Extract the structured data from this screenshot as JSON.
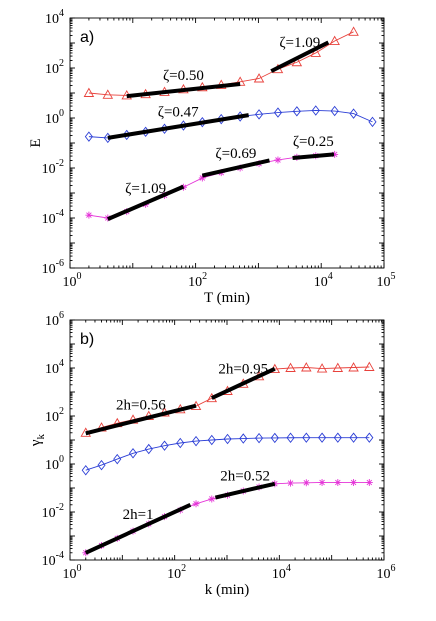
{
  "chart_data": [
    {
      "type": "line",
      "panel_label": "a)",
      "xlabel": "T (min)",
      "ylabel": "E",
      "x_scale": "log",
      "y_scale": "log",
      "xlim": [
        1,
        100000
      ],
      "ylim": [
        1e-06,
        10000
      ],
      "x_ticks": [
        {
          "value": 1,
          "base": "10",
          "exp": "0"
        },
        {
          "value": 100,
          "base": "10",
          "exp": "2"
        },
        {
          "value": 10000,
          "base": "10",
          "exp": "4"
        },
        {
          "value": 100000,
          "base": "10",
          "exp": "5"
        }
      ],
      "y_ticks": [
        {
          "value": 1e-06,
          "base": "10",
          "exp": "-6"
        },
        {
          "value": 0.0001,
          "base": "10",
          "exp": "-4"
        },
        {
          "value": 0.01,
          "base": "10",
          "exp": "-2"
        },
        {
          "value": 1,
          "base": "10",
          "exp": "0"
        },
        {
          "value": 100,
          "base": "10",
          "exp": "2"
        },
        {
          "value": 10000,
          "base": "10",
          "exp": "4"
        }
      ],
      "series": [
        {
          "color": "#e8423c",
          "marker": "triangle",
          "x": [
            2,
            4,
            8,
            16,
            32,
            64,
            128,
            256,
            512,
            1024,
            2048,
            4096,
            8192,
            16384,
            32768
          ],
          "y": [
            10,
            8.5,
            8,
            9,
            11,
            14,
            17,
            21,
            28,
            38,
            90,
            170,
            400,
            1200,
            2800
          ]
        },
        {
          "color": "#2c3fd6",
          "marker": "diamond",
          "x": [
            2,
            4,
            8,
            16,
            32,
            64,
            128,
            256,
            512,
            1024,
            2048,
            4096,
            8192,
            16384,
            32768,
            65536
          ],
          "y": [
            0.18,
            0.16,
            0.21,
            0.28,
            0.37,
            0.5,
            0.68,
            0.9,
            1.15,
            1.4,
            1.65,
            1.85,
            2.0,
            1.9,
            1.5,
            0.7
          ]
        },
        {
          "color": "#e535d8",
          "marker": "star",
          "x": [
            2,
            4,
            8,
            16,
            32,
            64,
            128,
            256,
            512,
            1024,
            2048,
            4096,
            8192,
            16384
          ],
          "y": [
            0.00013,
            0.0001,
            0.00018,
            0.00035,
            0.0008,
            0.0017,
            0.004,
            0.0065,
            0.01,
            0.015,
            0.021,
            0.027,
            0.031,
            0.035
          ]
        }
      ],
      "fits": [
        {
          "label": "ζ=0.50",
          "x": [
            8,
            512
          ],
          "y": [
            7.5,
            23
          ]
        },
        {
          "label": "ζ=1.09",
          "x": [
            1600,
            13000
          ],
          "y": [
            75,
            1050
          ]
        },
        {
          "label": "ζ=0.47",
          "x": [
            4,
            700
          ],
          "y": [
            0.16,
            1.3
          ]
        },
        {
          "label": "ζ=1.09",
          "x": [
            4,
            64
          ],
          "y": [
            9e-05,
            0.0018
          ]
        },
        {
          "label": "ζ=0.69",
          "x": [
            128,
            1500
          ],
          "y": [
            0.005,
            0.02
          ]
        },
        {
          "label": "ζ=0.25",
          "x": [
            3500,
            16000
          ],
          "y": [
            0.025,
            0.035
          ]
        }
      ]
    },
    {
      "type": "line",
      "panel_label": "b)",
      "xlabel": "k (min)",
      "ylabel_base": "γ",
      "ylabel_sub": "k",
      "x_scale": "log",
      "y_scale": "log",
      "xlim": [
        1,
        1000000
      ],
      "ylim": [
        0.0001,
        1000000
      ],
      "x_ticks": [
        {
          "value": 1,
          "base": "10",
          "exp": "0"
        },
        {
          "value": 100,
          "base": "10",
          "exp": "2"
        },
        {
          "value": 10000,
          "base": "10",
          "exp": "4"
        },
        {
          "value": 1000000,
          "base": "10",
          "exp": "6"
        }
      ],
      "y_ticks": [
        {
          "value": 0.0001,
          "base": "10",
          "exp": "-4"
        },
        {
          "value": 0.01,
          "base": "10",
          "exp": "-2"
        },
        {
          "value": 1,
          "base": "10",
          "exp": "0"
        },
        {
          "value": 100,
          "base": "10",
          "exp": "2"
        },
        {
          "value": 10000,
          "base": "10",
          "exp": "4"
        },
        {
          "value": 1000000,
          "base": "10",
          "exp": "6"
        }
      ],
      "series": [
        {
          "color": "#e8423c",
          "marker": "triangle",
          "x": [
            2,
            4,
            8,
            16,
            32,
            64,
            128,
            256,
            512,
            1024,
            2048,
            4096,
            8192,
            16384,
            32768,
            65536,
            131072,
            262144,
            524288
          ],
          "y": [
            20,
            33,
            50,
            70,
            100,
            140,
            190,
            260,
            550,
            1100,
            2200,
            4500,
            9000,
            10000,
            10500,
            9500,
            10000,
            10500,
            11000
          ]
        },
        {
          "color": "#2c3fd6",
          "marker": "diamond",
          "x": [
            2,
            4,
            8,
            16,
            32,
            64,
            128,
            256,
            512,
            1024,
            2048,
            4096,
            8192,
            16384,
            32768,
            65536,
            131072,
            262144,
            524288
          ],
          "y": [
            0.55,
            0.9,
            1.6,
            2.8,
            4.2,
            5.8,
            7.5,
            9,
            10,
            11,
            11.5,
            12,
            12.2,
            12.4,
            12.5,
            12.5,
            12.5,
            12.5,
            12.5
          ]
        },
        {
          "color": "#e535d8",
          "marker": "star",
          "x": [
            2,
            4,
            8,
            16,
            32,
            64,
            128,
            256,
            512,
            1024,
            2048,
            4096,
            8192,
            16384,
            32768,
            65536,
            131072,
            262144,
            524288
          ],
          "y": [
            0.0002,
            0.0004,
            0.0008,
            0.0016,
            0.0032,
            0.0064,
            0.012,
            0.022,
            0.035,
            0.05,
            0.075,
            0.11,
            0.15,
            0.16,
            0.165,
            0.17,
            0.17,
            0.17,
            0.17
          ]
        }
      ],
      "fits": [
        {
          "label": "2h=0.56",
          "x": [
            2,
            256
          ],
          "y": [
            19,
            270
          ]
        },
        {
          "label": "2h=0.95",
          "x": [
            512,
            8192
          ],
          "y": [
            560,
            9300
          ]
        },
        {
          "label": "2h=1",
          "x": [
            2,
            200
          ],
          "y": [
            0.0002,
            0.02
          ]
        },
        {
          "label": "2h=0.52",
          "x": [
            600,
            8192
          ],
          "y": [
            0.04,
            0.15
          ]
        }
      ]
    }
  ]
}
